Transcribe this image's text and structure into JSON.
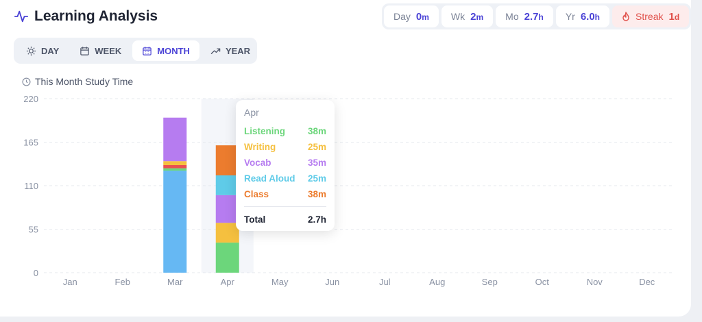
{
  "header": {
    "title": "Learning Analysis"
  },
  "stats": [
    {
      "label": "Day",
      "value": "0",
      "unit": "m"
    },
    {
      "label": "Wk",
      "value": "2",
      "unit": "m"
    },
    {
      "label": "Mo",
      "value": "2.7",
      "unit": "h"
    },
    {
      "label": "Yr",
      "value": "6.0",
      "unit": "h"
    },
    {
      "label": "Streak",
      "value": "1",
      "unit": "d"
    }
  ],
  "tabs": [
    {
      "label": "DAY",
      "icon": "sun-icon"
    },
    {
      "label": "WEEK",
      "icon": "calendar-icon"
    },
    {
      "label": "MONTH",
      "icon": "calendar-grid-icon",
      "active": true
    },
    {
      "label": "YEAR",
      "icon": "trend-up-icon"
    }
  ],
  "chart_title": "This Month Study Time",
  "chart_data": {
    "type": "bar",
    "stacked": true,
    "categories": [
      "Jan",
      "Feb",
      "Mar",
      "Apr",
      "May",
      "Jun",
      "Jul",
      "Aug",
      "Sep",
      "Oct",
      "Nov",
      "Dec"
    ],
    "yticks": [
      0,
      55,
      110,
      165,
      220
    ],
    "ylim": [
      0,
      220
    ],
    "grid": true,
    "highlight_category": "Apr",
    "series": [
      {
        "name": "Listening",
        "color": "#6cd67b",
        "values": [
          0,
          0,
          3,
          38,
          0,
          0,
          0,
          0,
          0,
          0,
          0,
          0
        ]
      },
      {
        "name": "Writing",
        "color": "#f5c03f",
        "values": [
          0,
          0,
          5,
          25,
          0,
          0,
          0,
          0,
          0,
          0,
          0,
          0
        ]
      },
      {
        "name": "Vocab",
        "color": "#b67cf0",
        "values": [
          0,
          0,
          55,
          35,
          0,
          0,
          0,
          0,
          0,
          0,
          0,
          0
        ]
      },
      {
        "name": "Read Aloud",
        "color": "#5fcbe8",
        "values": [
          0,
          0,
          0,
          25,
          0,
          0,
          0,
          0,
          0,
          0,
          0,
          0
        ]
      },
      {
        "name": "Class",
        "color": "#ec7c2e",
        "values": [
          0,
          0,
          0,
          38,
          0,
          0,
          0,
          0,
          0,
          0,
          0,
          0
        ]
      },
      {
        "name": "",
        "color": "#e95050",
        "values": [
          0,
          0,
          4,
          0,
          0,
          0,
          0,
          0,
          0,
          0,
          0,
          0
        ]
      },
      {
        "name": "",
        "color": "#66b8f3",
        "values": [
          0,
          0,
          129,
          0,
          0,
          0,
          0,
          0,
          0,
          0,
          0,
          0
        ]
      }
    ],
    "series_order_bottom_to_top": [
      6,
      0,
      5,
      1,
      2,
      3,
      4
    ]
  },
  "tooltip": {
    "month": "Apr",
    "rows": [
      {
        "label": "Listening",
        "value": "38m",
        "color": "#6cd67b"
      },
      {
        "label": "Writing",
        "value": "25m",
        "color": "#f5c03f"
      },
      {
        "label": "Vocab",
        "value": "35m",
        "color": "#b67cf0"
      },
      {
        "label": "Read Aloud",
        "value": "25m",
        "color": "#5fcbe8"
      },
      {
        "label": "Class",
        "value": "38m",
        "color": "#ec7c2e"
      }
    ],
    "total_label": "Total",
    "total_value": "2.7h"
  }
}
